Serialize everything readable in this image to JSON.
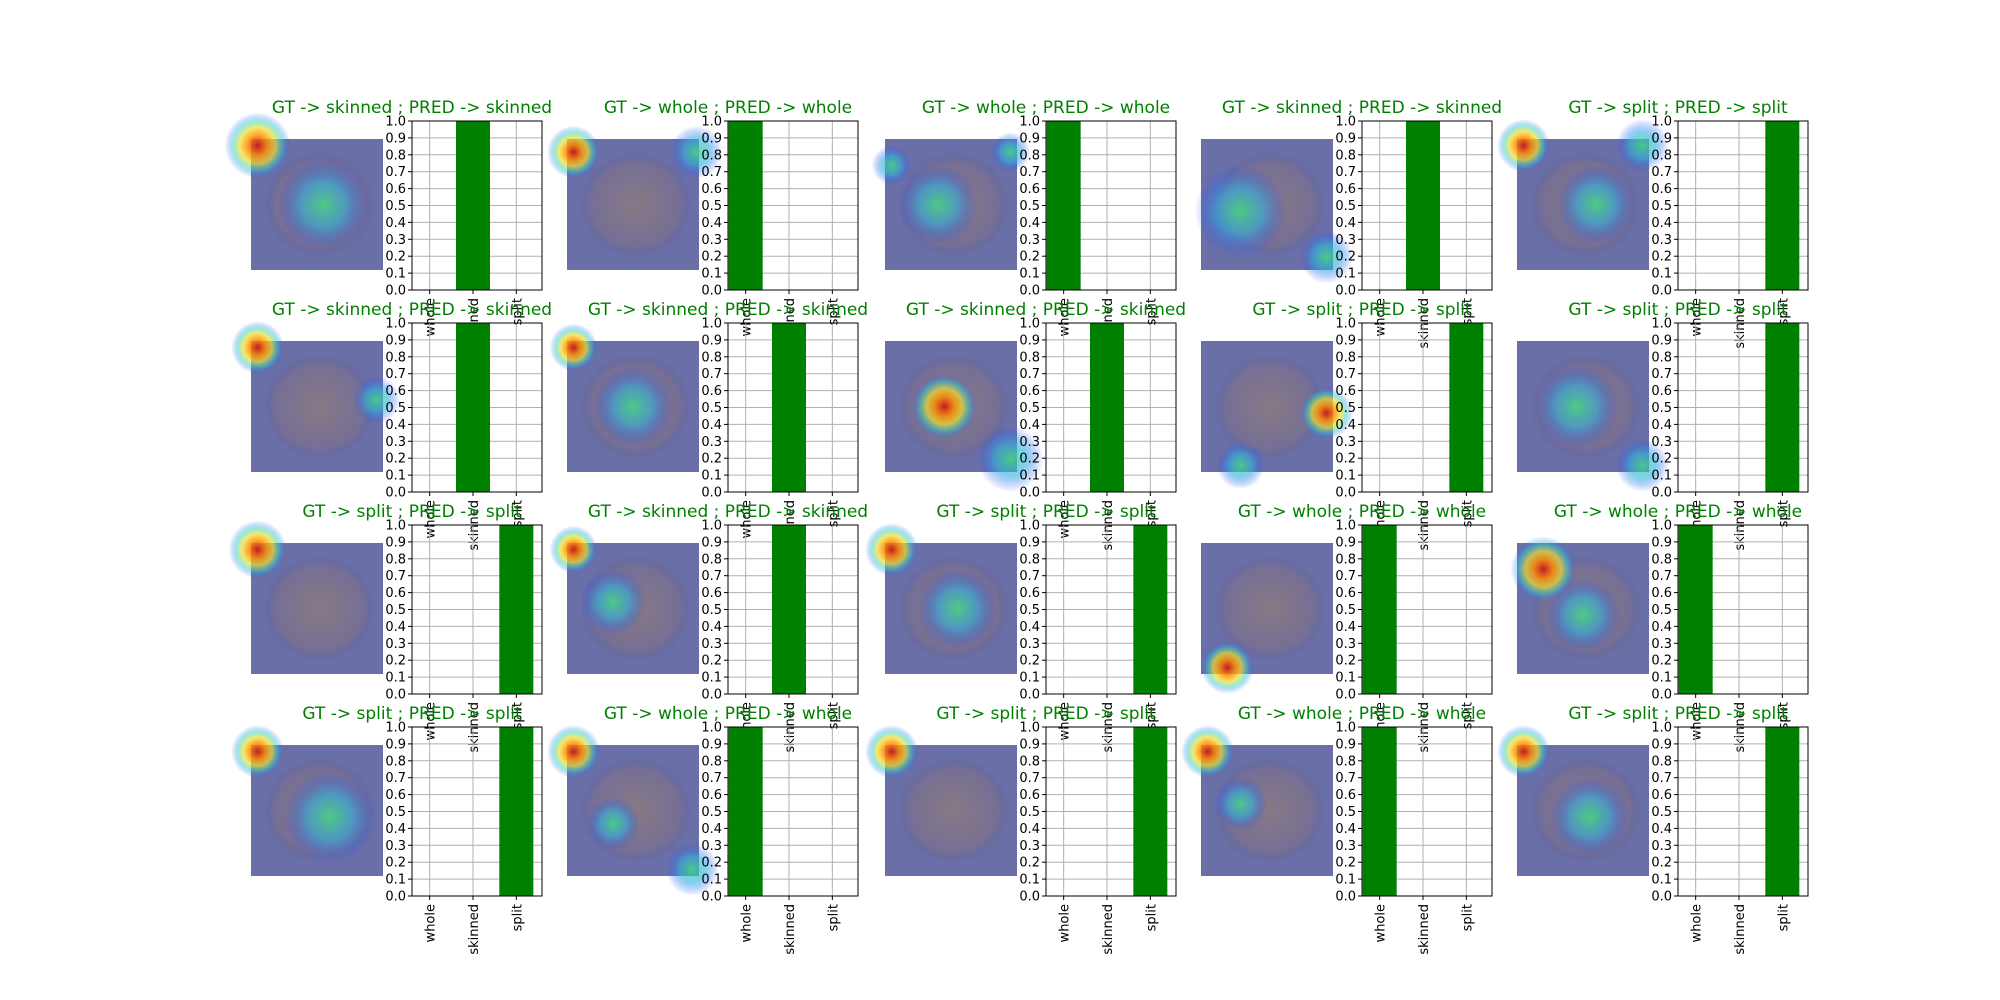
{
  "colors": {
    "bar": "#008000",
    "title": "#008000",
    "grid": "#b0b0b0",
    "axis": "#000000",
    "heatmap_base": "#6b6fa8"
  },
  "chart_data": {
    "type": "bar",
    "layout": "grid",
    "rows": 4,
    "columns": 5,
    "categories": [
      "whole",
      "skinned",
      "split"
    ],
    "ylim": [
      0,
      1
    ],
    "yticks": [
      "0.0",
      "0.1",
      "0.2",
      "0.3",
      "0.4",
      "0.5",
      "0.6",
      "0.7",
      "0.8",
      "0.9",
      "1.0"
    ],
    "grid": true,
    "panels": [
      {
        "title": "GT -> skinned ; PRED -> skinned",
        "values": [
          0,
          1,
          0
        ]
      },
      {
        "title": "GT -> whole ; PRED -> whole",
        "values": [
          1,
          0,
          0
        ]
      },
      {
        "title": "GT -> whole ; PRED -> whole",
        "values": [
          1,
          0,
          0
        ]
      },
      {
        "title": "GT -> skinned ; PRED -> skinned",
        "values": [
          0,
          1,
          0
        ]
      },
      {
        "title": "GT -> split ; PRED -> split",
        "values": [
          0,
          0,
          1
        ]
      },
      {
        "title": "GT -> skinned ; PRED -> skinned",
        "values": [
          0,
          1,
          0
        ]
      },
      {
        "title": "GT -> skinned ; PRED -> skinned",
        "values": [
          0,
          1,
          0
        ]
      },
      {
        "title": "GT -> skinned ; PRED -> skinned",
        "values": [
          0,
          1,
          0
        ]
      },
      {
        "title": "GT -> split ; PRED -> split",
        "values": [
          0,
          0,
          1
        ]
      },
      {
        "title": "GT -> split ; PRED -> split",
        "values": [
          0,
          0,
          1
        ]
      },
      {
        "title": "GT -> split ; PRED -> split",
        "values": [
          0,
          0,
          1
        ]
      },
      {
        "title": "GT -> skinned ; PRED -> skinned",
        "values": [
          0,
          1,
          0
        ]
      },
      {
        "title": "GT -> split ; PRED -> split",
        "values": [
          0,
          0,
          1
        ]
      },
      {
        "title": "GT -> whole ; PRED -> whole",
        "values": [
          1,
          0,
          0
        ]
      },
      {
        "title": "GT -> whole ; PRED -> whole",
        "values": [
          1,
          0,
          0
        ]
      },
      {
        "title": "GT -> split ; PRED -> split",
        "values": [
          0,
          0,
          1
        ]
      },
      {
        "title": "GT -> whole ; PRED -> whole",
        "values": [
          1,
          0,
          0
        ]
      },
      {
        "title": "GT -> split ; PRED -> split",
        "values": [
          0,
          0,
          1
        ]
      },
      {
        "title": "GT -> whole ; PRED -> whole",
        "values": [
          1,
          0,
          0
        ]
      },
      {
        "title": "GT -> split ; PRED -> split",
        "values": [
          0,
          0,
          1
        ]
      }
    ]
  }
}
